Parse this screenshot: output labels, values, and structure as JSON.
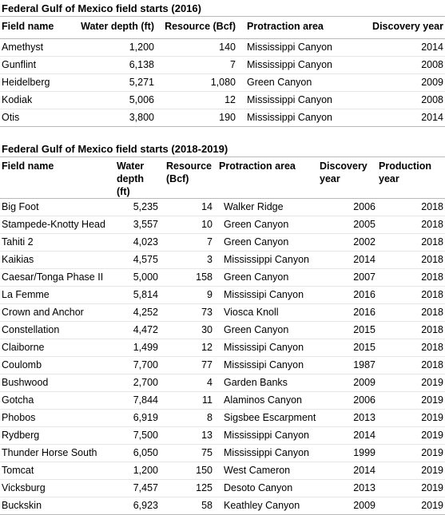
{
  "table1": {
    "title": "Federal Gulf of Mexico field starts (2016)",
    "headers": [
      "Field name",
      "Water depth (ft)",
      "Resource (Bcf)",
      "Protraction area",
      "Discovery year"
    ],
    "rows": [
      [
        "Amethyst",
        "1,200",
        "140",
        "Mississippi Canyon",
        "2014"
      ],
      [
        "Gunflint",
        "6,138",
        "7",
        "Mississippi Canyon",
        "2008"
      ],
      [
        "Heidelberg",
        "5,271",
        "1,080",
        "Green Canyon",
        "2009"
      ],
      [
        "Kodiak",
        "5,006",
        "12",
        "Mississippi Canyon",
        "2008"
      ],
      [
        "Otis",
        "3,800",
        "190",
        "Mississippi Canyon",
        "2014"
      ]
    ]
  },
  "table2": {
    "title": "Federal Gulf of Mexico field starts (2018-2019)",
    "headers": [
      [
        "Field name"
      ],
      [
        "Water",
        "depth (ft)"
      ],
      [
        "Resource",
        "(Bcf)"
      ],
      [
        "Protraction area"
      ],
      [
        "Discovery",
        "year"
      ],
      [
        "Production",
        "year"
      ]
    ],
    "rows": [
      [
        "Big Foot",
        "5,235",
        "14",
        "Walker Ridge",
        "2006",
        "2018"
      ],
      [
        "Stampede-Knotty Head",
        "3,557",
        "10",
        "Green Canyon",
        "2005",
        "2018"
      ],
      [
        "Tahiti 2",
        "4,023",
        "7",
        "Green Canyon",
        "2002",
        "2018"
      ],
      [
        "Kaikias",
        "4,575",
        "3",
        "Mississippi Canyon",
        "2014",
        "2018"
      ],
      [
        "Caesar/Tonga Phase II",
        "5,000",
        "158",
        "Green Canyon",
        "2007",
        "2018"
      ],
      [
        "La Femme",
        "5,814",
        "9",
        "Mississipi Canyon",
        "2016",
        "2018"
      ],
      [
        "Crown and Anchor",
        "4,252",
        "73",
        "Viosca Knoll",
        "2016",
        "2018"
      ],
      [
        "Constellation",
        "4,472",
        "30",
        "Green Canyon",
        "2015",
        "2018"
      ],
      [
        "Claiborne",
        "1,499",
        "12",
        "Mississipi Canyon",
        "2015",
        "2018"
      ],
      [
        "Coulomb",
        "7,700",
        "77",
        "Mississipi Canyon",
        "1987",
        "2018"
      ],
      [
        "Bushwood",
        "2,700",
        "4",
        "Garden Banks",
        "2009",
        "2019"
      ],
      [
        "Gotcha",
        "7,844",
        "11",
        "Alaminos Canyon",
        "2006",
        "2019"
      ],
      [
        "Phobos",
        "6,919",
        "8",
        "Sigsbee Escarpment",
        "2013",
        "2019"
      ],
      [
        "Rydberg",
        "7,500",
        "13",
        "Mississippi Canyon",
        "2014",
        "2019"
      ],
      [
        "Thunder Horse South",
        "6,050",
        "75",
        "Mississippi Canyon",
        "1999",
        "2019"
      ],
      [
        "Tomcat",
        "1,200",
        "150",
        "West Cameron",
        "2014",
        "2019"
      ],
      [
        "Vicksburg",
        "7,457",
        "125",
        "Desoto Canyon",
        "2013",
        "2019"
      ],
      [
        "Buckskin",
        "6,923",
        "58",
        "Keathley Canyon",
        "2009",
        "2019"
      ]
    ]
  }
}
